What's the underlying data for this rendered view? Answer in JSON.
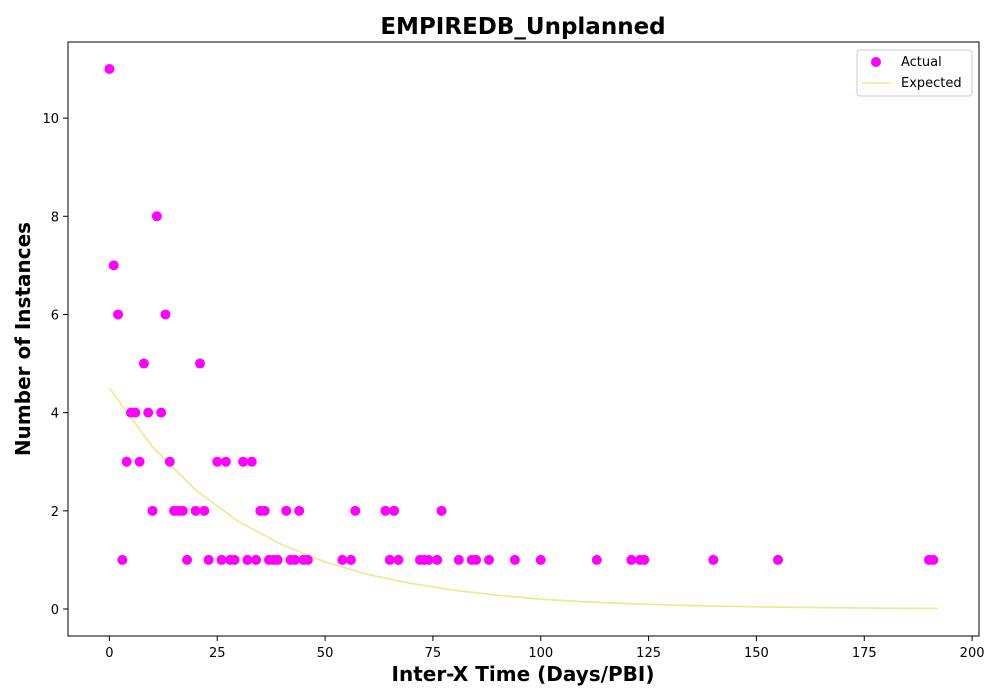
{
  "chart_data": {
    "type": "scatter",
    "title": "EMPIREDB_Unplanned",
    "xlabel": "Inter-X Time (Days/PBI)",
    "ylabel": "Number of Instances",
    "xlim": [
      -9.6,
      201.6
    ],
    "ylim": [
      -0.55,
      11.55
    ],
    "xticks": [
      0,
      25,
      50,
      75,
      100,
      125,
      150,
      175,
      200
    ],
    "yticks": [
      0,
      2,
      4,
      6,
      8,
      10
    ],
    "grid": false,
    "legend_position": "top-right",
    "series": [
      {
        "name": "Actual",
        "kind": "scatter",
        "color": "#ff00ff",
        "points": [
          [
            0,
            11
          ],
          [
            1,
            7
          ],
          [
            2,
            6
          ],
          [
            3,
            1
          ],
          [
            4,
            3
          ],
          [
            5,
            4
          ],
          [
            6,
            4
          ],
          [
            7,
            3
          ],
          [
            8,
            5
          ],
          [
            9,
            4
          ],
          [
            10,
            2
          ],
          [
            11,
            8
          ],
          [
            12,
            4
          ],
          [
            13,
            6
          ],
          [
            14,
            3
          ],
          [
            15,
            2
          ],
          [
            16,
            2
          ],
          [
            17,
            2
          ],
          [
            18,
            1
          ],
          [
            20,
            2
          ],
          [
            21,
            5
          ],
          [
            22,
            2
          ],
          [
            23,
            1
          ],
          [
            25,
            3
          ],
          [
            26,
            1
          ],
          [
            27,
            3
          ],
          [
            28,
            1
          ],
          [
            29,
            1
          ],
          [
            31,
            3
          ],
          [
            32,
            1
          ],
          [
            33,
            3
          ],
          [
            34,
            1
          ],
          [
            35,
            2
          ],
          [
            36,
            2
          ],
          [
            37,
            1
          ],
          [
            38,
            1
          ],
          [
            39,
            1
          ],
          [
            41,
            2
          ],
          [
            42,
            1
          ],
          [
            43,
            1
          ],
          [
            44,
            2
          ],
          [
            45,
            1
          ],
          [
            46,
            1
          ],
          [
            54,
            1
          ],
          [
            56,
            1
          ],
          [
            57,
            2
          ],
          [
            64,
            2
          ],
          [
            65,
            1
          ],
          [
            66,
            2
          ],
          [
            67,
            1
          ],
          [
            72,
            1
          ],
          [
            73,
            1
          ],
          [
            74,
            1
          ],
          [
            76,
            1
          ],
          [
            77,
            2
          ],
          [
            81,
            1
          ],
          [
            84,
            1
          ],
          [
            85,
            1
          ],
          [
            88,
            1
          ],
          [
            94,
            1
          ],
          [
            100,
            1
          ],
          [
            113,
            1
          ],
          [
            121,
            1
          ],
          [
            123,
            1
          ],
          [
            124,
            1
          ],
          [
            140,
            1
          ],
          [
            155,
            1
          ],
          [
            190,
            1
          ],
          [
            191,
            1
          ]
        ]
      },
      {
        "name": "Expected",
        "kind": "line",
        "color": "#f0e68c",
        "x": [
          0,
          10,
          20,
          30,
          40,
          50,
          60,
          70,
          80,
          90,
          100,
          110,
          120,
          130,
          140,
          150,
          160,
          170,
          180,
          192
        ],
        "y": [
          4.5,
          3.3,
          2.42,
          1.78,
          1.31,
          0.96,
          0.7,
          0.52,
          0.38,
          0.28,
          0.2,
          0.15,
          0.11,
          0.08,
          0.06,
          0.044,
          0.032,
          0.024,
          0.017,
          0.012
        ]
      }
    ]
  }
}
